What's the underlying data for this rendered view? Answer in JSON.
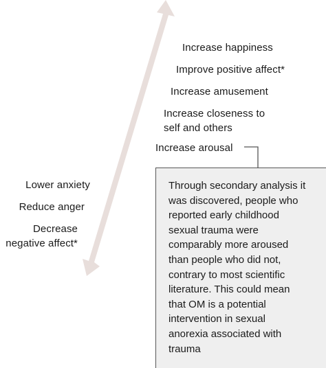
{
  "arrow_color": "#e8dedb",
  "connector_color": "#555555",
  "box_background": "#efefef",
  "positive_effects": [
    "Increase happiness",
    "Improve positive affect*",
    "Increase amusement",
    "Increase closeness to\nself and others",
    "Increase arousal"
  ],
  "negative_effects": [
    "Lower anxiety",
    "Reduce anger",
    "Decrease\nnegative affect*"
  ],
  "note": "Through secondary analysis it\nwas discovered, people who\nreported early childhood\nsexual trauma were\ncomparably more aroused\nthan people who did not,\ncontrary to most scientific\nliterature. This could mean\nthat OM is a potential\nintervention in sexual\nanorexia associated with\ntrauma"
}
